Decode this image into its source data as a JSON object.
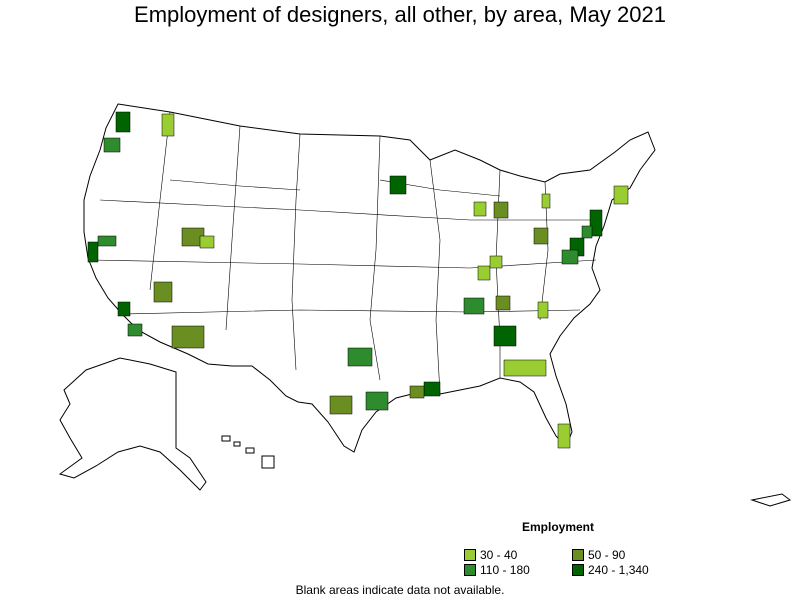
{
  "title": "Employment of designers, all other, by area, May 2021",
  "legend": {
    "title": "Employment",
    "items": [
      {
        "label": "30 - 40",
        "color": "#9ACD32"
      },
      {
        "label": "50 - 90",
        "color": "#6B8E23"
      },
      {
        "label": "110 - 180",
        "color": "#2E8B2E"
      },
      {
        "label": "240 - 1,340",
        "color": "#006400"
      }
    ]
  },
  "footnote": "Blank areas indicate data not available."
}
